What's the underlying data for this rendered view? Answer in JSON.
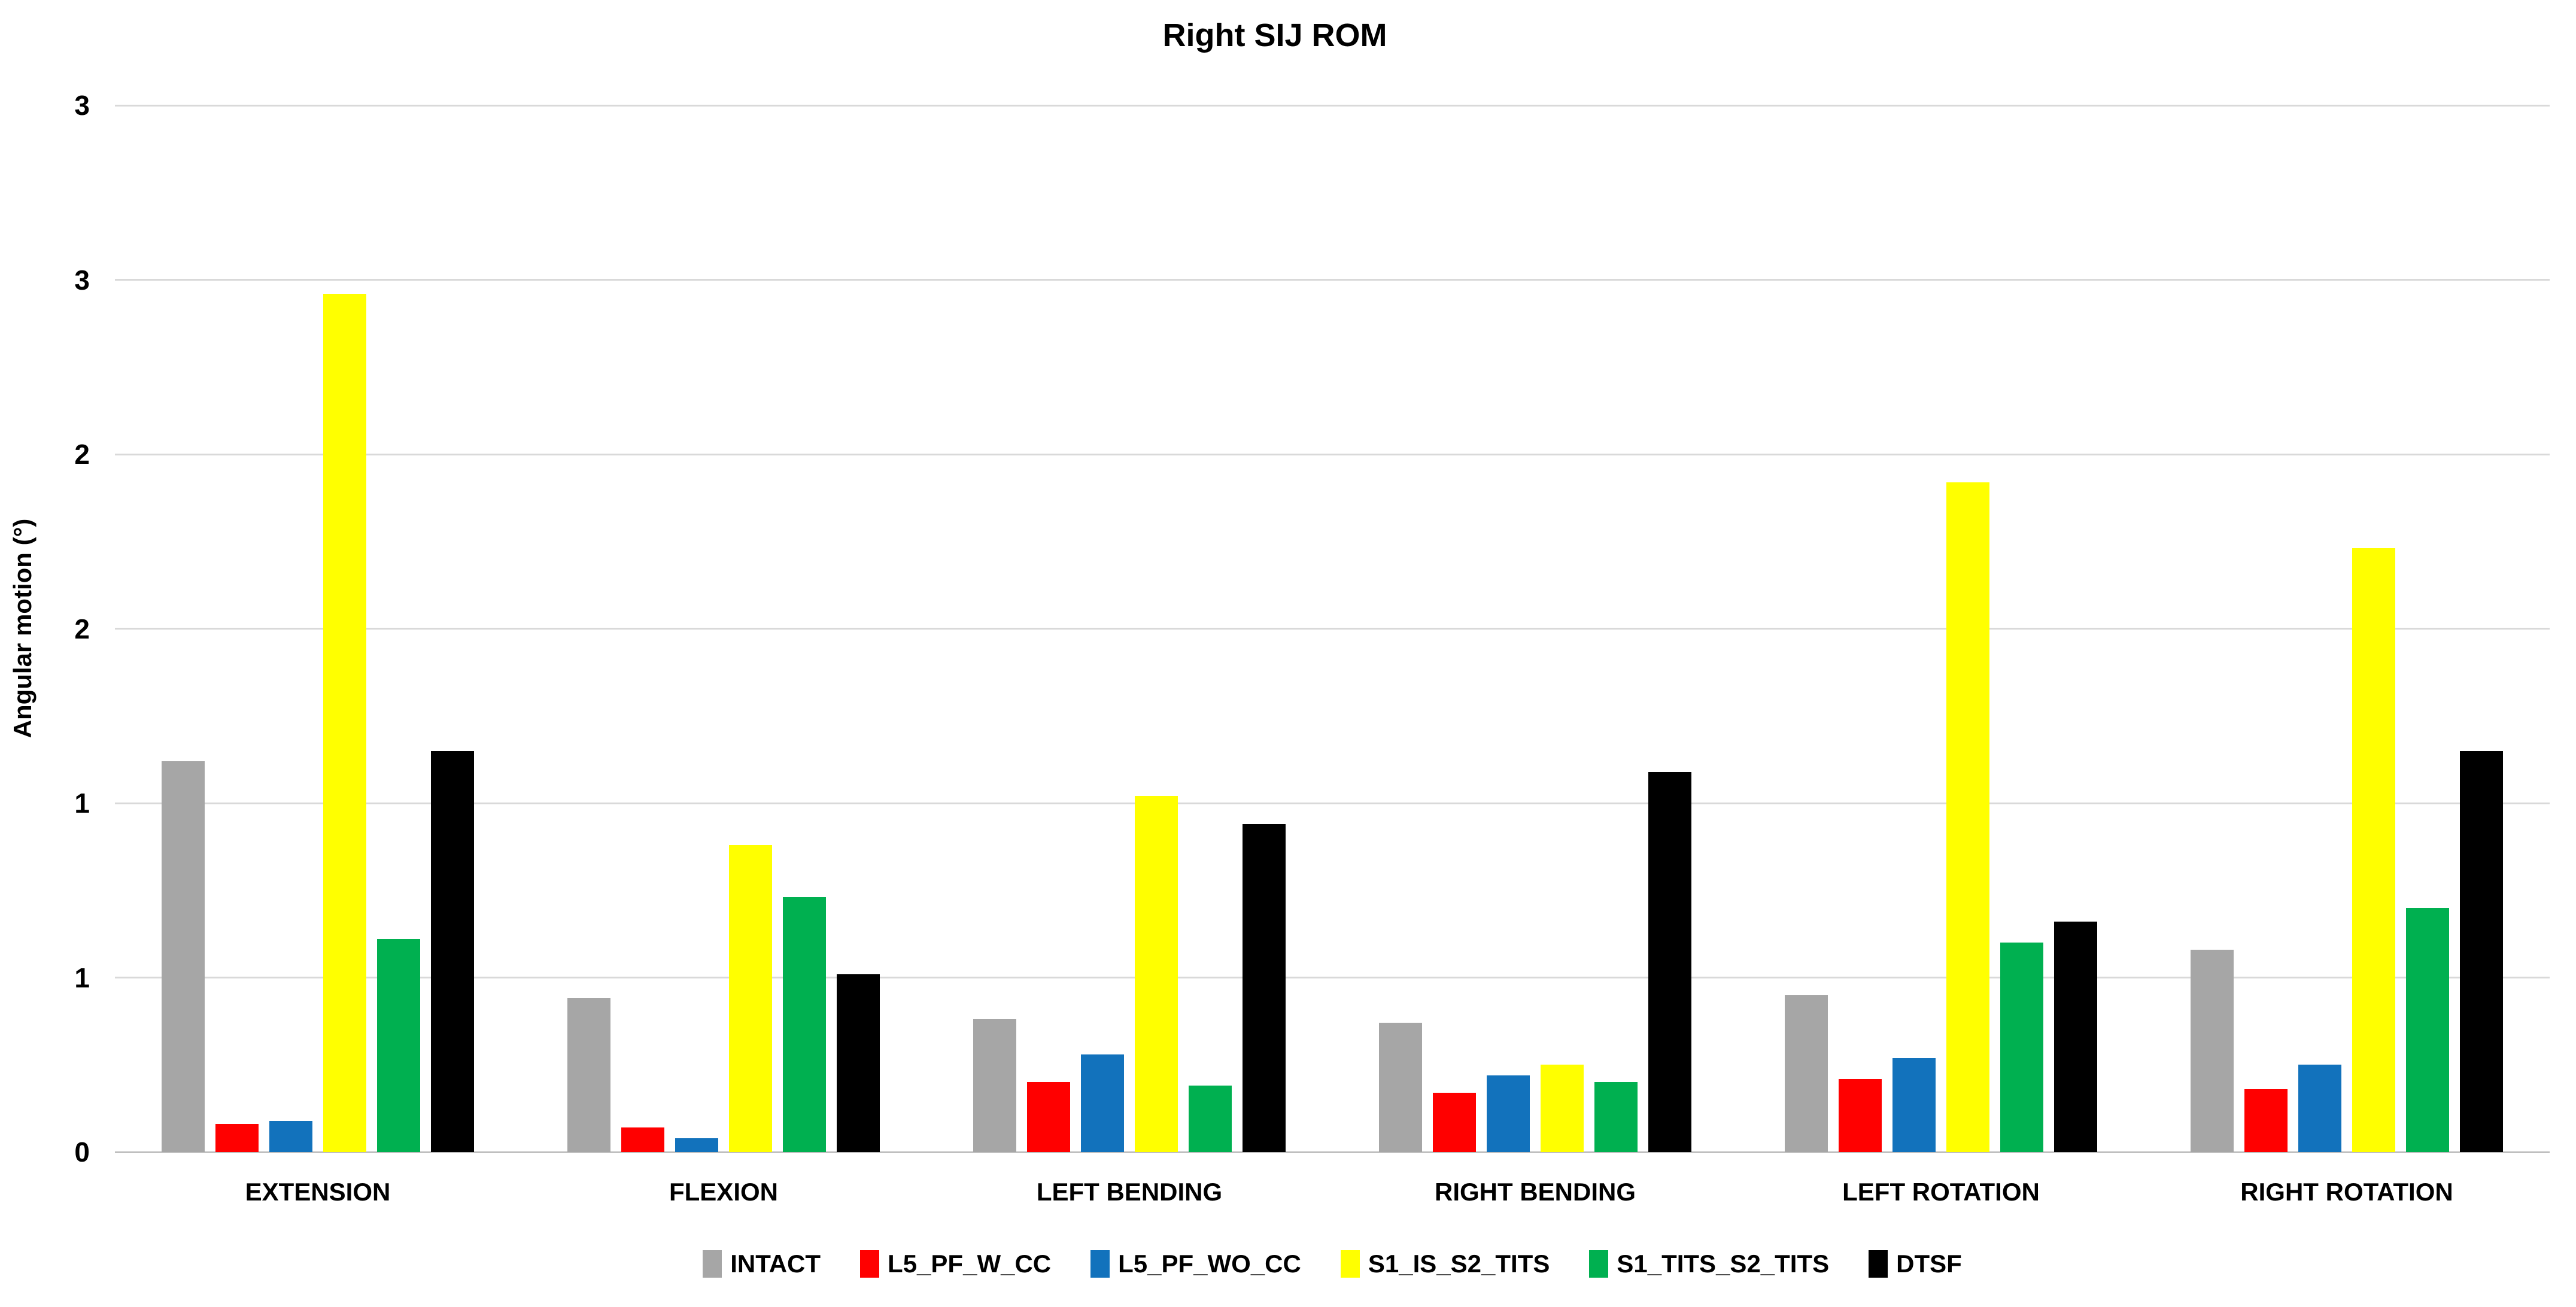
{
  "title": "Right SIJ ROM",
  "y_axis": {
    "label": "Angular motion (°)",
    "tick_labels_bottom_to_top": [
      "0",
      "1",
      "1",
      "2",
      "2",
      "3",
      "3"
    ]
  },
  "legend": {
    "items": [
      "INTACT",
      "L5_PF_W_CC",
      "L5_PF_WO_CC",
      "S1_IS_S2_TITS",
      "S1_TITS_S2_TITS",
      "DTSF"
    ]
  },
  "colors": {
    "intact_gray": "#A6A6A6",
    "l5_pf_w_cc_red": "#FF0000",
    "l5_pf_wo_cc_blue": "#1272BC",
    "s1_is_s2_tits_yellow": "#FFFF00",
    "s1_tits_s2_tits_green": "#00B050",
    "dtsf_black": "#000000",
    "gridline": "#D9D9D9"
  },
  "chart_data": {
    "type": "bar",
    "title": "Right SIJ ROM",
    "xlabel": "",
    "ylabel": "Angular motion (°)",
    "ylim": [
      0,
      3
    ],
    "grid": true,
    "gridlines_every": 0.5,
    "legend_position": "bottom",
    "y_ticks": [
      {
        "value": 0.0,
        "label": "0"
      },
      {
        "value": 0.5,
        "label": "1"
      },
      {
        "value": 1.0,
        "label": "1"
      },
      {
        "value": 1.5,
        "label": "2"
      },
      {
        "value": 2.0,
        "label": "2"
      },
      {
        "value": 2.5,
        "label": "3"
      },
      {
        "value": 3.0,
        "label": "3"
      }
    ],
    "categories": [
      "EXTENSION",
      "FLEXION",
      "LEFT BENDING",
      "RIGHT BENDING",
      "LEFT ROTATION",
      "RIGHT ROTATION"
    ],
    "series": [
      {
        "name": "INTACT",
        "color": "#A6A6A6",
        "values": [
          1.12,
          0.44,
          0.38,
          0.37,
          0.45,
          0.58
        ]
      },
      {
        "name": "L5_PF_W_CC",
        "color": "#FF0000",
        "values": [
          0.08,
          0.07,
          0.2,
          0.17,
          0.21,
          0.18
        ]
      },
      {
        "name": "L5_PF_WO_CC",
        "color": "#1272BC",
        "values": [
          0.09,
          0.04,
          0.28,
          0.22,
          0.27,
          0.25
        ]
      },
      {
        "name": "S1_IS_S2_TITS",
        "color": "#FFFF00",
        "values": [
          2.46,
          0.88,
          1.02,
          0.25,
          1.92,
          1.73
        ]
      },
      {
        "name": "S1_TITS_S2_TITS",
        "color": "#00B050",
        "values": [
          0.61,
          0.73,
          0.19,
          0.2,
          0.6,
          0.7
        ]
      },
      {
        "name": "DTSF",
        "color": "#000000",
        "values": [
          1.15,
          0.51,
          0.94,
          1.09,
          0.66,
          1.15
        ]
      }
    ]
  }
}
